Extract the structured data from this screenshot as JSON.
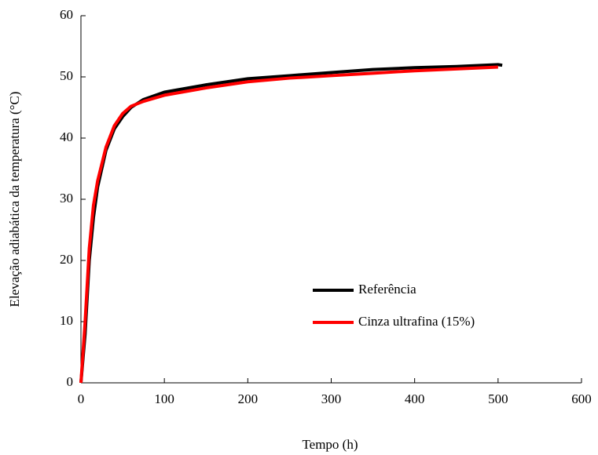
{
  "chart_data": {
    "type": "line",
    "x_label": "Tempo (h)",
    "y_label": "Elevação adiabática da temperatura (°C)",
    "x": [
      0,
      5,
      10,
      15,
      20,
      30,
      40,
      50,
      60,
      75,
      100,
      150,
      200,
      250,
      300,
      350,
      400,
      450,
      500,
      505
    ],
    "series": [
      {
        "name": "Referência",
        "color": "#000000",
        "values": [
          0,
          8,
          20,
          27,
          32,
          38,
          41.5,
          43.5,
          45,
          46.3,
          47.5,
          48.7,
          49.7,
          50.2,
          50.7,
          51.2,
          51.5,
          51.7,
          52,
          51.9
        ]
      },
      {
        "name": "Cinza ultrafina (15%)",
        "color": "#ff0000",
        "values": [
          0,
          10,
          22,
          29,
          33,
          38.5,
          42,
          44,
          45.2,
          46,
          47,
          48.2,
          49.2,
          49.8,
          50.2,
          50.6,
          51,
          51.3,
          51.6,
          null
        ]
      }
    ],
    "xlim": [
      0,
      600
    ],
    "xticks": [
      0,
      100,
      200,
      300,
      400,
      500,
      600
    ],
    "ylim": [
      0,
      60
    ],
    "yticks": [
      0,
      10,
      20,
      30,
      40,
      50,
      60
    ]
  }
}
